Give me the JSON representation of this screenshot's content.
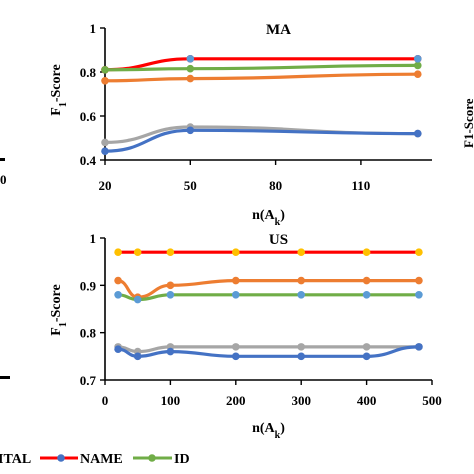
{
  "side_fragments": {
    "left_tick": "0",
    "right_ylabel": "F1-Score"
  },
  "legend": {
    "items": [
      {
        "label": "ITAL",
        "color": "#ed7d31",
        "marker": "#ed7d31"
      },
      {
        "label": "NAME",
        "color": "#ff0000",
        "marker": "#4472c4"
      },
      {
        "label": "ID",
        "color": "#70ad47",
        "marker": "#70ad47"
      }
    ]
  },
  "chart_data": [
    {
      "type": "line",
      "title": "MA",
      "xlabel": "n(A_k)",
      "ylabel": "F1-Score",
      "xlim": [
        20,
        135
      ],
      "ylim": [
        0.4,
        1.0
      ],
      "xticks": [
        "20",
        "50",
        "80",
        "110"
      ],
      "yticks": [
        "0.4",
        "0.6",
        "0.8",
        "1"
      ],
      "grid": false,
      "series": [
        {
          "color": "#ff0000",
          "marker": "#ff0000",
          "x": [
            20,
            50,
            130
          ],
          "y": [
            0.81,
            0.86,
            0.86
          ]
        },
        {
          "color": "#70ad47",
          "marker": "#70ad47",
          "x": [
            20,
            50,
            130
          ],
          "y": [
            0.81,
            0.815,
            0.83
          ]
        },
        {
          "color": "#ed7d31",
          "marker": "#ed7d31",
          "x": [
            20,
            50,
            130
          ],
          "y": [
            0.76,
            0.77,
            0.79
          ]
        },
        {
          "color": "#a6a6a6",
          "marker": "#a6a6a6",
          "x": [
            20,
            50,
            130
          ],
          "y": [
            0.48,
            0.55,
            0.52
          ]
        },
        {
          "color": "#4472c4",
          "marker": "#4472c4",
          "x": [
            20,
            50,
            130
          ],
          "y": [
            0.44,
            0.535,
            0.52
          ]
        },
        {
          "color": "#4472c4",
          "marker": "#5b9bd5",
          "x": [
            50,
            130
          ],
          "y": [
            0.86,
            0.86
          ],
          "markers_only": true
        }
      ]
    },
    {
      "type": "line",
      "title": "US",
      "xlabel": "n(A_k)",
      "ylabel": "F1-Score",
      "xlim": [
        0,
        500
      ],
      "ylim": [
        0.7,
        1.0
      ],
      "xticks": [
        "0",
        "100",
        "200",
        "300",
        "400",
        "500"
      ],
      "yticks": [
        "0.7",
        "0.8",
        "0.9",
        "1"
      ],
      "grid": false,
      "series": [
        {
          "color": "#ff0000",
          "marker": "#ffc000",
          "x": [
            20,
            50,
            100,
            200,
            300,
            400,
            480
          ],
          "y": [
            0.97,
            0.97,
            0.97,
            0.97,
            0.97,
            0.97,
            0.97
          ]
        },
        {
          "color": "#ed7d31",
          "marker": "#ed7d31",
          "x": [
            20,
            50,
            100,
            200,
            300,
            400,
            480
          ],
          "y": [
            0.91,
            0.875,
            0.9,
            0.91,
            0.91,
            0.91,
            0.91
          ]
        },
        {
          "color": "#70ad47",
          "marker": "#5b9bd5",
          "x": [
            20,
            50,
            100,
            200,
            300,
            400,
            480
          ],
          "y": [
            0.88,
            0.87,
            0.88,
            0.88,
            0.88,
            0.88,
            0.88
          ]
        },
        {
          "color": "#a6a6a6",
          "marker": "#a6a6a6",
          "x": [
            20,
            50,
            100,
            200,
            300,
            400,
            480
          ],
          "y": [
            0.77,
            0.76,
            0.77,
            0.77,
            0.77,
            0.77,
            0.77
          ]
        },
        {
          "color": "#4472c4",
          "marker": "#4472c4",
          "x": [
            20,
            50,
            100,
            200,
            300,
            400,
            480
          ],
          "y": [
            0.765,
            0.75,
            0.76,
            0.75,
            0.75,
            0.75,
            0.77
          ]
        }
      ]
    }
  ]
}
